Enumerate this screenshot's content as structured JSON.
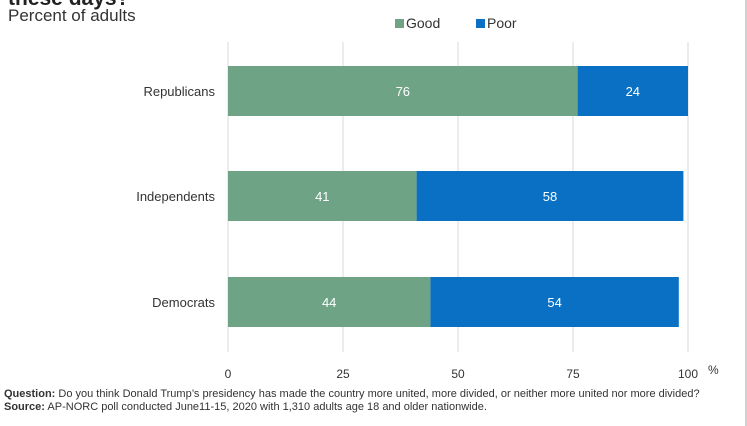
{
  "chart_data": {
    "type": "bar",
    "orientation": "horizontal",
    "stacked": true,
    "title": "these days?",
    "subtitle": "Percent of adults",
    "categories": [
      "Republicans",
      "Independents",
      "Democrats"
    ],
    "series": [
      {
        "name": "Good",
        "values": [
          76,
          41,
          44
        ],
        "color": "#6fa386"
      },
      {
        "name": "Poor",
        "values": [
          24,
          58,
          54
        ],
        "color": "#0a70c4"
      }
    ],
    "xlim": [
      0,
      100
    ],
    "xticks": [
      0,
      25,
      50,
      75,
      100
    ],
    "x_unit": "%",
    "legend": "top-center",
    "grid": true
  },
  "notes": {
    "question_label": "Question:",
    "question_text": " Do you think Donald Trump’s presidency has made the country more united, more divided, or neither more united nor more divided?",
    "source_label": "Source:",
    "source_text": " AP-NORC poll conducted June11-15, 2020 with 1,310 adults age 18 and older nationwide."
  },
  "colors": {
    "gridline": "#d9d9d9",
    "label_text": "#333333",
    "bar_label_text": "#ffffff"
  }
}
